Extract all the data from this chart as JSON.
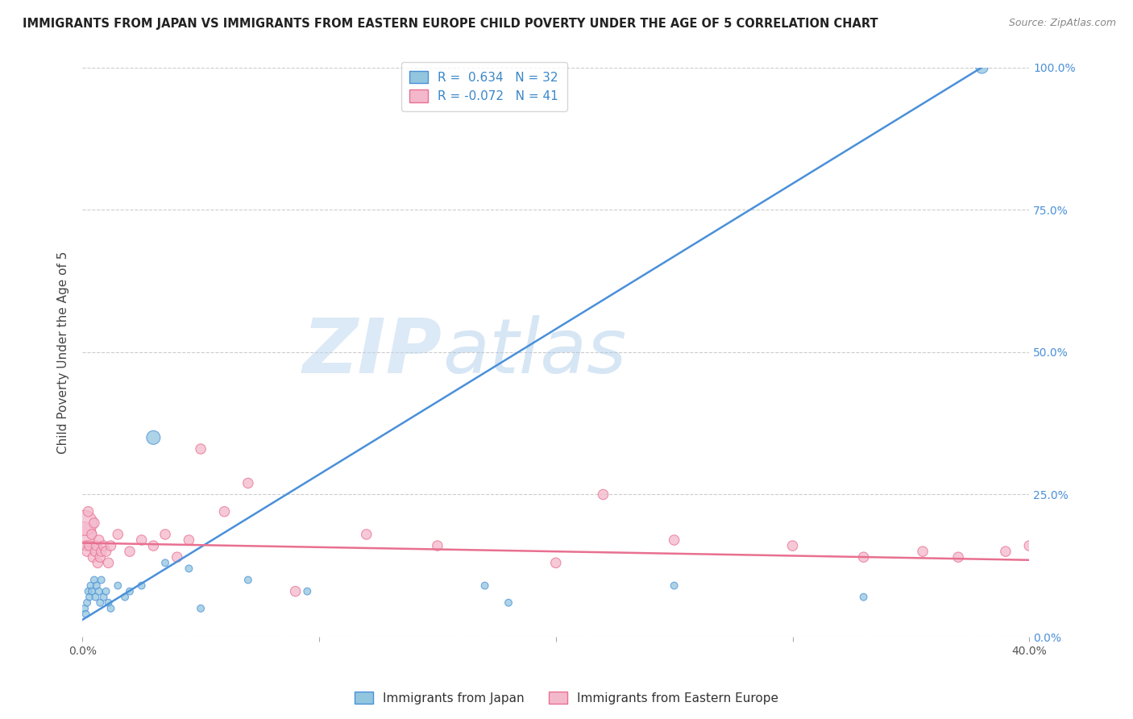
{
  "title": "IMMIGRANTS FROM JAPAN VS IMMIGRANTS FROM EASTERN EUROPE CHILD POVERTY UNDER THE AGE OF 5 CORRELATION CHART",
  "source": "Source: ZipAtlas.com",
  "ylabel": "Child Poverty Under the Age of 5",
  "xlim": [
    0.0,
    40.0
  ],
  "ylim": [
    0.0,
    100.0
  ],
  "legend1_label": "R =  0.634   N = 32",
  "legend2_label": "R = -0.072   N = 41",
  "series1_color": "#92c5de",
  "series2_color": "#f4b8cc",
  "line1_color": "#4a90d9",
  "line2_color": "#e87090",
  "watermark_zip": "ZIP",
  "watermark_atlas": "atlas",
  "background_color": "#ffffff",
  "grid_color": "#cccccc",
  "japan_x": [
    0.1,
    0.15,
    0.2,
    0.25,
    0.3,
    0.35,
    0.4,
    0.5,
    0.55,
    0.6,
    0.7,
    0.75,
    0.8,
    0.9,
    1.0,
    1.1,
    1.2,
    1.5,
    1.8,
    2.0,
    2.5,
    3.0,
    3.5,
    4.5,
    5.0,
    7.0,
    9.5,
    17.0,
    18.0,
    25.0,
    33.0,
    38.0
  ],
  "japan_y": [
    5.0,
    4.0,
    6.0,
    8.0,
    7.0,
    9.0,
    8.0,
    10.0,
    7.0,
    9.0,
    8.0,
    6.0,
    10.0,
    7.0,
    8.0,
    6.0,
    5.0,
    9.0,
    7.0,
    8.0,
    9.0,
    35.0,
    13.0,
    12.0,
    5.0,
    10.0,
    8.0,
    9.0,
    6.0,
    9.0,
    7.0,
    100.0
  ],
  "japan_sizes": [
    40,
    40,
    40,
    40,
    40,
    40,
    40,
    40,
    40,
    40,
    40,
    40,
    40,
    40,
    40,
    40,
    40,
    40,
    40,
    40,
    40,
    150,
    40,
    40,
    40,
    40,
    40,
    40,
    40,
    40,
    40,
    120
  ],
  "eastern_x": [
    0.05,
    0.1,
    0.15,
    0.2,
    0.25,
    0.3,
    0.4,
    0.45,
    0.5,
    0.55,
    0.6,
    0.65,
    0.7,
    0.75,
    0.8,
    0.9,
    1.0,
    1.1,
    1.2,
    1.5,
    2.0,
    2.5,
    3.0,
    3.5,
    4.0,
    4.5,
    5.0,
    6.0,
    7.0,
    9.0,
    12.0,
    15.0,
    20.0,
    22.0,
    25.0,
    30.0,
    33.0,
    35.5,
    37.0,
    39.0,
    40.0
  ],
  "eastern_y": [
    18.0,
    20.0,
    16.0,
    15.0,
    22.0,
    16.0,
    18.0,
    14.0,
    20.0,
    15.0,
    16.0,
    13.0,
    17.0,
    14.0,
    15.0,
    16.0,
    15.0,
    13.0,
    16.0,
    18.0,
    15.0,
    17.0,
    16.0,
    18.0,
    14.0,
    17.0,
    33.0,
    22.0,
    27.0,
    8.0,
    18.0,
    16.0,
    13.0,
    25.0,
    17.0,
    16.0,
    14.0,
    15.0,
    14.0,
    15.0,
    16.0
  ],
  "eastern_sizes": [
    500,
    500,
    80,
    80,
    80,
    80,
    80,
    80,
    80,
    80,
    80,
    80,
    80,
    80,
    80,
    80,
    80,
    80,
    80,
    80,
    80,
    80,
    80,
    80,
    80,
    80,
    80,
    80,
    80,
    80,
    80,
    80,
    80,
    80,
    80,
    80,
    80,
    80,
    80,
    80,
    80
  ],
  "japan_line_x0": 0.0,
  "japan_line_y0": 3.0,
  "japan_line_x1": 38.0,
  "japan_line_y1": 100.0,
  "eastern_line_x0": 0.0,
  "eastern_line_y0": 16.5,
  "eastern_line_x1": 40.0,
  "eastern_line_y1": 13.5
}
